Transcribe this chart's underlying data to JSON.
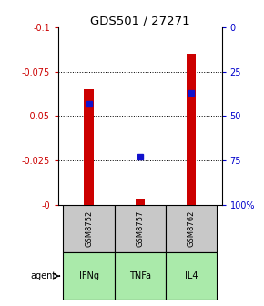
{
  "title": "GDS501 / 27271",
  "samples": [
    "GSM8752",
    "GSM8757",
    "GSM8762"
  ],
  "agents": [
    "IFNg",
    "TNFa",
    "IL4"
  ],
  "log_ratios": [
    -0.065,
    -0.003,
    -0.085
  ],
  "percentile_ranks": [
    43,
    73,
    37
  ],
  "ylim_left": [
    0.0,
    -0.1
  ],
  "ylim_right": [
    100.0,
    0.0
  ],
  "yticks_left": [
    0.0,
    -0.025,
    -0.05,
    -0.075,
    -0.1
  ],
  "ytick_labels_left": [
    "-0",
    "-0.025",
    "-0.05",
    "-0.075",
    "-0.1"
  ],
  "yticks_right": [
    100,
    75,
    50,
    25,
    0
  ],
  "ytick_labels_right": [
    "100%",
    "75",
    "50",
    "25",
    "0"
  ],
  "bar_color": "#cc0000",
  "dot_color": "#1111cc",
  "sample_bg": "#c8c8c8",
  "agent_bg_color": "#aaeaaa",
  "left_label_color": "#cc0000",
  "right_label_color": "#0000cc",
  "bar_width": 0.18
}
